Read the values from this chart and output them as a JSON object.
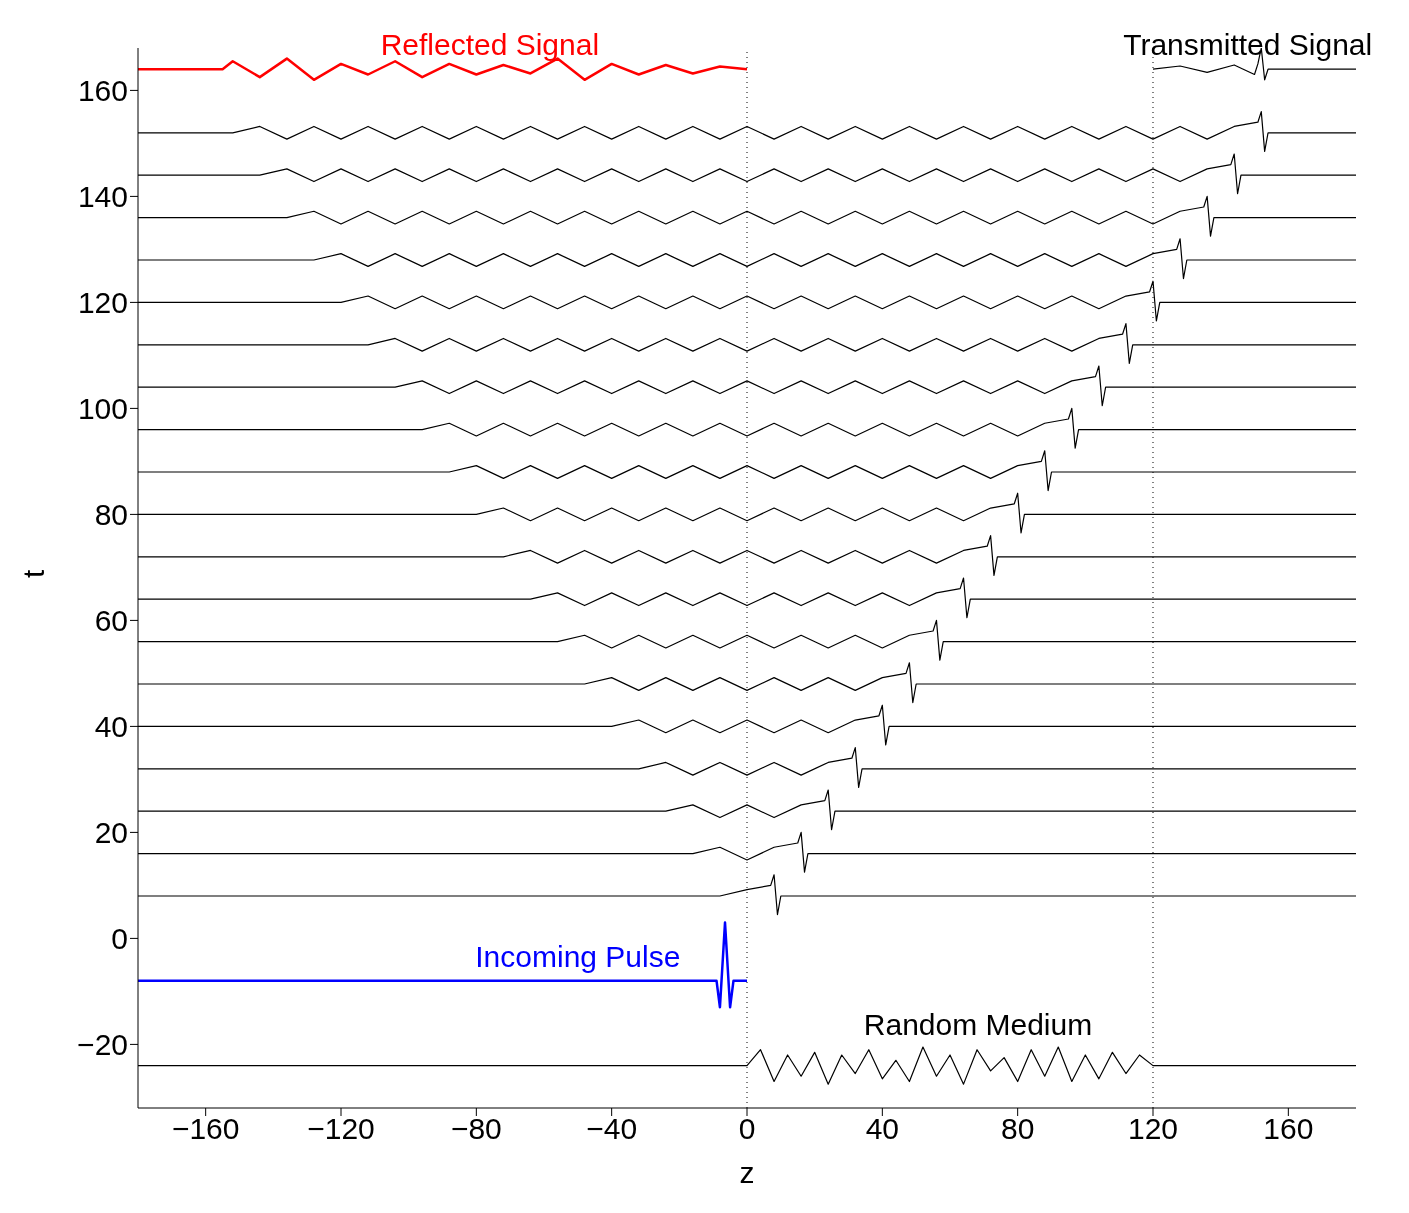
{
  "chart_data": {
    "type": "line",
    "xlabel": "z",
    "ylabel": "t",
    "xlim": [
      -180,
      180
    ],
    "ylim": [
      -32,
      168
    ],
    "xticks": [
      {
        "value": -160,
        "label": "−160"
      },
      {
        "value": -120,
        "label": "−120"
      },
      {
        "value": -80,
        "label": "−80"
      },
      {
        "value": -40,
        "label": "−40"
      },
      0,
      40,
      80,
      120,
      160
    ],
    "yticks": [
      {
        "value": -20,
        "label": "−20"
      },
      0,
      20,
      40,
      60,
      80,
      100,
      120,
      140,
      160
    ],
    "grid": false,
    "legend": false,
    "marker": "none",
    "line_style": "solid",
    "ref_lines": [
      {
        "axis": "x",
        "value": 0,
        "label": null,
        "color": "#000000",
        "line_style": "dotted"
      },
      {
        "axis": "x",
        "value": 120,
        "label": null,
        "color": "#000000",
        "line_style": "dotted"
      }
    ],
    "annotations": [
      {
        "text": "Reflected Signal",
        "x": -76,
        "y": 164
      },
      {
        "text": "Transmitted Signal",
        "x": 148,
        "y": 164
      },
      {
        "text": "Incoming Pulse",
        "x": -50,
        "y": -8
      },
      "Random Medium"
    ],
    "series": [
      {
        "color": "#000000",
        "x": [
          -180,
          0,
          4,
          8,
          12,
          16,
          20,
          24,
          28,
          32,
          36,
          40,
          44,
          48,
          52,
          56,
          60,
          64,
          68,
          72,
          76,
          80,
          84,
          88,
          92,
          96,
          100,
          104,
          108,
          112,
          116,
          120,
          180
        ],
        "values": [
          -24,
          -24,
          -21,
          -27,
          -22,
          -26,
          -21.5,
          -27.5,
          -22,
          -25.5,
          -21,
          -26.5,
          -23,
          -27,
          -20.5,
          -26,
          -22,
          -27.5,
          -21,
          -25,
          -22.5,
          -27,
          -21,
          -26,
          -20.5,
          -27,
          -22,
          -26.5,
          -21.5,
          -25.5,
          -22,
          -24,
          -24
        ]
      },
      {
        "color": "#0000ff",
        "x": [
          -180,
          -9,
          -8,
          -6.5,
          -5,
          -4,
          0
        ],
        "values": [
          -8,
          -8,
          -13,
          3,
          -13,
          -8,
          -8
        ]
      },
      {
        "color": "#000000",
        "x": [
          -180,
          -8,
          0,
          7,
          8,
          9,
          10,
          180
        ],
        "values": [
          8,
          8,
          9.2,
          10,
          12,
          4.5,
          8,
          8
        ]
      },
      {
        "color": "#000000",
        "x": [
          -180,
          -16,
          -8,
          0,
          8,
          15,
          16,
          17,
          18,
          180
        ],
        "values": [
          16,
          16,
          17.2,
          14.8,
          17.2,
          18,
          20,
          12.5,
          16,
          16
        ]
      },
      {
        "color": "#000000",
        "x": [
          -180,
          -24,
          -16,
          -8,
          0,
          8,
          16,
          23,
          24,
          25,
          26,
          180
        ],
        "values": [
          24,
          24,
          25.2,
          22.8,
          25.2,
          22.8,
          25.2,
          26,
          28,
          20.5,
          24,
          24
        ]
      },
      {
        "color": "#000000",
        "x": [
          -180,
          -32,
          -24,
          -16,
          -8,
          0,
          8,
          16,
          24,
          31,
          32,
          33,
          34,
          180
        ],
        "values": [
          32,
          32,
          33.2,
          30.8,
          33.2,
          30.8,
          33.2,
          30.8,
          33.2,
          34,
          36,
          28.5,
          32,
          32
        ]
      },
      {
        "color": "#000000",
        "x": [
          -180,
          -40,
          -32,
          -24,
          -16,
          -8,
          0,
          8,
          16,
          24,
          32,
          39,
          40,
          41,
          42,
          180
        ],
        "values": [
          40,
          40,
          41.2,
          38.8,
          41.2,
          38.8,
          41.2,
          38.8,
          41.2,
          38.8,
          41.2,
          42,
          44,
          36.5,
          40,
          40
        ]
      },
      {
        "color": "#000000",
        "x": [
          -180,
          -48,
          -40,
          -32,
          -24,
          -16,
          -8,
          0,
          8,
          16,
          24,
          32,
          40,
          47,
          48,
          49,
          50,
          180
        ],
        "values": [
          48,
          48,
          49.2,
          46.8,
          49.2,
          46.8,
          49.2,
          46.8,
          49.2,
          46.8,
          49.2,
          46.8,
          49.2,
          50,
          52,
          44.5,
          48,
          48
        ]
      },
      {
        "color": "#000000",
        "x": [
          -180,
          -56,
          -48,
          -40,
          -32,
          -24,
          -16,
          -8,
          0,
          8,
          16,
          24,
          32,
          40,
          48,
          55,
          56,
          57,
          58,
          180
        ],
        "values": [
          56,
          56,
          57.2,
          54.8,
          57.2,
          54.8,
          57.2,
          54.8,
          57.2,
          54.8,
          57.2,
          54.8,
          57.2,
          54.8,
          57.2,
          58,
          60,
          52.5,
          56,
          56
        ]
      },
      {
        "color": "#000000",
        "x": [
          -180,
          -64,
          -56,
          -48,
          -40,
          -32,
          -24,
          -16,
          -8,
          0,
          8,
          16,
          24,
          32,
          40,
          48,
          56,
          63,
          64,
          65,
          66,
          180
        ],
        "values": [
          64,
          64,
          65.2,
          62.8,
          65.2,
          62.8,
          65.2,
          62.8,
          65.2,
          62.8,
          65.2,
          62.8,
          65.2,
          62.8,
          65.2,
          62.8,
          65.2,
          66,
          68,
          60.5,
          64,
          64
        ]
      },
      {
        "color": "#000000",
        "x": [
          -180,
          -72,
          -64,
          -56,
          -48,
          -40,
          -32,
          -24,
          -16,
          -8,
          0,
          8,
          16,
          24,
          32,
          40,
          48,
          56,
          64,
          71,
          72,
          73,
          74,
          180
        ],
        "values": [
          72,
          72,
          73.2,
          70.8,
          73.2,
          70.8,
          73.2,
          70.8,
          73.2,
          70.8,
          73.2,
          70.8,
          73.2,
          70.8,
          73.2,
          70.8,
          73.2,
          70.8,
          73.2,
          74,
          76,
          68.5,
          72,
          72
        ]
      },
      {
        "color": "#000000",
        "x": [
          -180,
          -80,
          -72,
          -64,
          -56,
          -48,
          -40,
          -32,
          -24,
          -16,
          -8,
          0,
          8,
          16,
          24,
          32,
          40,
          48,
          56,
          64,
          72,
          79,
          80,
          81,
          82,
          180
        ],
        "values": [
          80,
          80,
          81.2,
          78.8,
          81.2,
          78.8,
          81.2,
          78.8,
          81.2,
          78.8,
          81.2,
          78.8,
          81.2,
          78.8,
          81.2,
          78.8,
          81.2,
          78.8,
          81.2,
          78.8,
          81.2,
          82,
          84,
          76.5,
          80,
          80
        ]
      },
      {
        "color": "#000000",
        "x": [
          -180,
          -88,
          -80,
          -72,
          -64,
          -56,
          -48,
          -40,
          -32,
          -24,
          -16,
          -8,
          0,
          8,
          16,
          24,
          32,
          40,
          48,
          56,
          64,
          72,
          80,
          87,
          88,
          89,
          90,
          180
        ],
        "values": [
          88,
          88,
          89.2,
          86.8,
          89.2,
          86.8,
          89.2,
          86.8,
          89.2,
          86.8,
          89.2,
          86.8,
          89.2,
          86.8,
          89.2,
          86.8,
          89.2,
          86.8,
          89.2,
          86.8,
          89.2,
          86.8,
          89.2,
          90,
          92,
          84.5,
          88,
          88
        ]
      },
      {
        "color": "#000000",
        "x": [
          -180,
          -96,
          -88,
          -80,
          -72,
          -64,
          -56,
          -48,
          -40,
          -32,
          -24,
          -16,
          -8,
          0,
          8,
          16,
          24,
          32,
          40,
          48,
          56,
          64,
          72,
          80,
          88,
          95,
          96,
          97,
          98,
          180
        ],
        "values": [
          96,
          96,
          97.2,
          94.8,
          97.2,
          94.8,
          97.2,
          94.8,
          97.2,
          94.8,
          97.2,
          94.8,
          97.2,
          94.8,
          97.2,
          94.8,
          97.2,
          94.8,
          97.2,
          94.8,
          97.2,
          94.8,
          97.2,
          94.8,
          97.2,
          98,
          100,
          92.5,
          96,
          96
        ]
      },
      {
        "color": "#000000",
        "x": [
          -180,
          -104,
          -96,
          -88,
          -80,
          -72,
          -64,
          -56,
          -48,
          -40,
          -32,
          -24,
          -16,
          -8,
          0,
          8,
          16,
          24,
          32,
          40,
          48,
          56,
          64,
          72,
          80,
          88,
          96,
          103,
          104,
          105,
          106,
          180
        ],
        "values": [
          104,
          104,
          105.2,
          102.8,
          105.2,
          102.8,
          105.2,
          102.8,
          105.2,
          102.8,
          105.2,
          102.8,
          105.2,
          102.8,
          105.2,
          102.8,
          105.2,
          102.8,
          105.2,
          102.8,
          105.2,
          102.8,
          105.2,
          102.8,
          105.2,
          102.8,
          105.2,
          106,
          108,
          100.5,
          104,
          104
        ]
      },
      {
        "color": "#000000",
        "x": [
          -180,
          -112,
          -104,
          -96,
          -88,
          -80,
          -72,
          -64,
          -56,
          -48,
          -40,
          -32,
          -24,
          -16,
          -8,
          0,
          8,
          16,
          24,
          32,
          40,
          48,
          56,
          64,
          72,
          80,
          88,
          96,
          104,
          111,
          112,
          113,
          114,
          180
        ],
        "values": [
          112,
          112,
          113.2,
          110.8,
          113.2,
          110.8,
          113.2,
          110.8,
          113.2,
          110.8,
          113.2,
          110.8,
          113.2,
          110.8,
          113.2,
          110.8,
          113.2,
          110.8,
          113.2,
          110.8,
          113.2,
          110.8,
          113.2,
          110.8,
          113.2,
          110.8,
          113.2,
          110.8,
          113.2,
          114,
          116,
          108.5,
          112,
          112
        ]
      },
      {
        "color": "#000000",
        "x": [
          -180,
          -120,
          -112,
          -104,
          -96,
          -88,
          -80,
          -72,
          -64,
          -56,
          -48,
          -40,
          -32,
          -24,
          -16,
          -8,
          0,
          8,
          16,
          24,
          32,
          40,
          48,
          56,
          64,
          72,
          80,
          88,
          96,
          104,
          112,
          119,
          120,
          121,
          122,
          180
        ],
        "values": [
          120,
          120,
          121.2,
          118.8,
          121.2,
          118.8,
          121.2,
          118.8,
          121.2,
          118.8,
          121.2,
          118.8,
          121.2,
          118.8,
          121.2,
          118.8,
          121.2,
          118.8,
          121.2,
          118.8,
          121.2,
          118.8,
          121.2,
          118.8,
          121.2,
          118.8,
          121.2,
          118.8,
          121.2,
          118.8,
          121.2,
          122,
          124,
          116.5,
          120,
          120
        ]
      },
      {
        "color": "#000000",
        "x": [
          -180,
          -128,
          -120,
          -112,
          -104,
          -96,
          -88,
          -80,
          -72,
          -64,
          -56,
          -48,
          -40,
          -32,
          -24,
          -16,
          -8,
          0,
          8,
          16,
          24,
          32,
          40,
          48,
          56,
          64,
          72,
          80,
          88,
          96,
          104,
          112,
          120,
          127,
          128,
          129,
          130,
          180
        ],
        "values": [
          128,
          128,
          129.2,
          126.8,
          129.2,
          126.8,
          129.2,
          126.8,
          129.2,
          126.8,
          129.2,
          126.8,
          129.2,
          126.8,
          129.2,
          126.8,
          129.2,
          126.8,
          129.2,
          126.8,
          129.2,
          126.8,
          129.2,
          126.8,
          129.2,
          126.8,
          129.2,
          126.8,
          129.2,
          126.8,
          129.2,
          126.8,
          129.2,
          130,
          132,
          124.5,
          128,
          128
        ]
      },
      {
        "color": "#000000",
        "x": [
          -180,
          -136,
          -128,
          -120,
          -112,
          -104,
          -96,
          -88,
          -80,
          -72,
          -64,
          -56,
          -48,
          -40,
          -32,
          -24,
          -16,
          -8,
          0,
          8,
          16,
          24,
          32,
          40,
          48,
          56,
          64,
          72,
          80,
          88,
          96,
          104,
          112,
          120,
          128,
          135,
          136,
          137,
          138,
          180
        ],
        "values": [
          136,
          136,
          137.2,
          134.8,
          137.2,
          134.8,
          137.2,
          134.8,
          137.2,
          134.8,
          137.2,
          134.8,
          137.2,
          134.8,
          137.2,
          134.8,
          137.2,
          134.8,
          137.2,
          134.8,
          137.2,
          134.8,
          137.2,
          134.8,
          137.2,
          134.8,
          137.2,
          134.8,
          137.2,
          134.8,
          137.2,
          134.8,
          137.2,
          134.8,
          137.2,
          138,
          140,
          132.5,
          136,
          136
        ]
      },
      {
        "color": "#000000",
        "x": [
          -180,
          -144,
          -136,
          -128,
          -120,
          -112,
          -104,
          -96,
          -88,
          -80,
          -72,
          -64,
          -56,
          -48,
          -40,
          -32,
          -24,
          -16,
          -8,
          0,
          8,
          16,
          24,
          32,
          40,
          48,
          56,
          64,
          72,
          80,
          88,
          96,
          104,
          112,
          120,
          128,
          136,
          143,
          144,
          145,
          146,
          180
        ],
        "values": [
          144,
          144,
          145.2,
          142.8,
          145.2,
          142.8,
          145.2,
          142.8,
          145.2,
          142.8,
          145.2,
          142.8,
          145.2,
          142.8,
          145.2,
          142.8,
          145.2,
          142.8,
          145.2,
          142.8,
          145.2,
          142.8,
          145.2,
          142.8,
          145.2,
          142.8,
          145.2,
          142.8,
          145.2,
          142.8,
          145.2,
          142.8,
          145.2,
          142.8,
          145.2,
          142.8,
          145.2,
          146,
          148,
          140.5,
          144,
          144
        ]
      },
      {
        "color": "#000000",
        "x": [
          -180,
          -152,
          -144,
          -136,
          -128,
          -120,
          -112,
          -104,
          -96,
          -88,
          -80,
          -72,
          -64,
          -56,
          -48,
          -40,
          -32,
          -24,
          -16,
          -8,
          0,
          8,
          16,
          24,
          32,
          40,
          48,
          56,
          64,
          72,
          80,
          88,
          96,
          104,
          112,
          120,
          128,
          136,
          144,
          151,
          152,
          153,
          154,
          180
        ],
        "values": [
          152,
          152,
          153.2,
          150.8,
          153.2,
          150.8,
          153.2,
          150.8,
          153.2,
          150.8,
          153.2,
          150.8,
          153.2,
          150.8,
          153.2,
          150.8,
          153.2,
          150.8,
          153.2,
          150.8,
          153.2,
          150.8,
          153.2,
          150.8,
          153.2,
          150.8,
          153.2,
          150.8,
          153.2,
          150.8,
          153.2,
          150.8,
          153.2,
          150.8,
          153.2,
          150.8,
          153.2,
          150.8,
          153.2,
          154,
          156,
          148.5,
          152,
          152
        ]
      },
      {
        "color": "#ff0000",
        "x": [
          -180,
          -155,
          -152,
          -144,
          -136,
          -128,
          -120,
          -112,
          -104,
          -96,
          -88,
          -80,
          -72,
          -64,
          -56,
          -48,
          -40,
          -32,
          -24,
          -16,
          -8,
          0
        ],
        "values": [
          164,
          164,
          165.5,
          162.5,
          166,
          162,
          165,
          163,
          165.5,
          162.5,
          165,
          163,
          164.8,
          163.2,
          166,
          162,
          165,
          163,
          164.8,
          163.2,
          164.5,
          164
        ]
      },
      {
        "color": "#000000",
        "x": [
          120,
          128,
          136,
          144,
          150,
          151,
          152,
          153,
          154,
          180
        ],
        "values": [
          164,
          164.6,
          163.4,
          164.8,
          163,
          165,
          168,
          162,
          164,
          164
        ]
      }
    ]
  }
}
